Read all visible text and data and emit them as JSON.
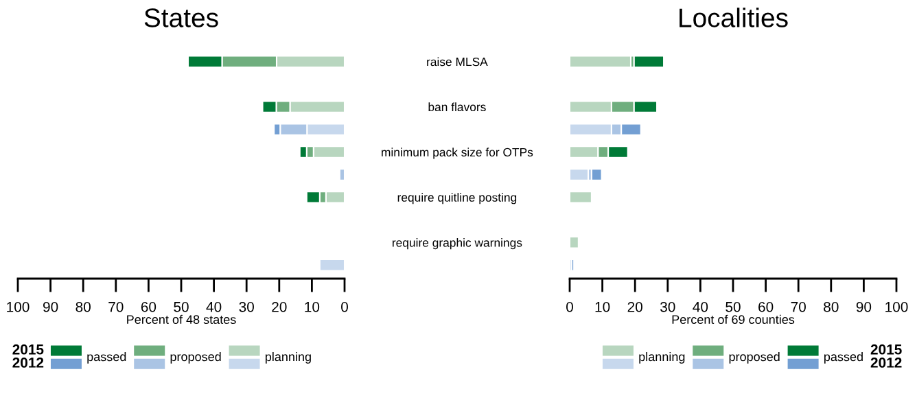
{
  "chart_data": [
    {
      "type": "bar",
      "orientation": "horizontal",
      "stacked": true,
      "title": "States",
      "xlabel": "Percent of 48 states",
      "categories": [
        "raise MLSA",
        null,
        "ban flavors",
        null,
        "minimum pack size for OTPs",
        null,
        "require quitline posting",
        null,
        "require graphic warnings",
        null
      ],
      "xlim": [
        100,
        0
      ],
      "xticks": [
        0,
        10,
        20,
        30,
        40,
        50,
        60,
        70,
        80,
        90,
        100
      ],
      "legend": "bottom",
      "annotations": [
        "2015",
        "2012"
      ],
      "series": [
        {
          "name": "planning",
          "colors": [
            "#b8d6bf",
            "#c7d8ed",
            "#b8d6bf",
            "#c7d8ed",
            "#b8d6bf",
            "#c7d8ed",
            "#b8d6bf",
            "#c7d8ed",
            "#b8d6bf",
            "#c7d8ed"
          ],
          "values": [
            20.8,
            null,
            16.7,
            11.5,
            9.5,
            null,
            5.7,
            null,
            null,
            7.6
          ]
        },
        {
          "name": "proposed",
          "colors": [
            "#6fae7e",
            "#aac4e4",
            "#6fae7e",
            "#aac4e4",
            "#6fae7e",
            "#aac4e4",
            "#6fae7e",
            "#aac4e4",
            "#6fae7e",
            "#aac4e4"
          ],
          "values": [
            16.7,
            null,
            4.2,
            8.2,
            2.1,
            1.5,
            1.9,
            null,
            null,
            null
          ]
        },
        {
          "name": "passed",
          "colors": [
            "#007a37",
            "#739fd3",
            "#007a37",
            "#739fd3",
            "#007a37",
            "#739fd3",
            "#007a37",
            "#739fd3",
            "#007a37",
            "#739fd3"
          ],
          "values": [
            10.4,
            null,
            4.2,
            1.9,
            2.1,
            null,
            4.0,
            null,
            null,
            null
          ]
        }
      ]
    },
    {
      "type": "bar",
      "orientation": "horizontal",
      "stacked": true,
      "title": "Localities",
      "xlabel": "Percent of 69 counties",
      "categories": [
        null,
        null,
        null,
        null,
        null,
        null,
        null,
        null,
        null,
        null
      ],
      "xlim": [
        0,
        100
      ],
      "xticks": [
        0,
        10,
        20,
        30,
        40,
        50,
        60,
        70,
        80,
        90,
        100
      ],
      "legend": "bottom",
      "annotations": [
        "2015",
        "2012"
      ],
      "series": [
        {
          "name": "planning",
          "colors": [
            "#b8d6bf",
            "#c7d8ed",
            "#b8d6bf",
            "#c7d8ed",
            "#b8d6bf",
            "#c7d8ed",
            "#b8d6bf",
            "#c7d8ed",
            "#b8d6bf",
            "#c7d8ed"
          ],
          "values": [
            18.7,
            null,
            12.8,
            12.8,
            8.7,
            5.7,
            6.7,
            null,
            2.7,
            0.6
          ]
        },
        {
          "name": "proposed",
          "colors": [
            "#6fae7e",
            "#aac4e4",
            "#6fae7e",
            "#aac4e4",
            "#6fae7e",
            "#aac4e4",
            "#6fae7e",
            "#aac4e4",
            "#6fae7e",
            "#aac4e4"
          ],
          "values": [
            1.0,
            null,
            6.9,
            3.0,
            3.1,
            1.0,
            null,
            null,
            null,
            null
          ]
        },
        {
          "name": "passed",
          "colors": [
            "#007a37",
            "#739fd3",
            "#007a37",
            "#739fd3",
            "#007a37",
            "#739fd3",
            "#007a37",
            "#739fd3",
            "#007a37",
            "#739fd3"
          ],
          "values": [
            9.1,
            null,
            7.0,
            6.0,
            6.0,
            3.1,
            null,
            null,
            null,
            0.7
          ]
        }
      ]
    }
  ]
}
